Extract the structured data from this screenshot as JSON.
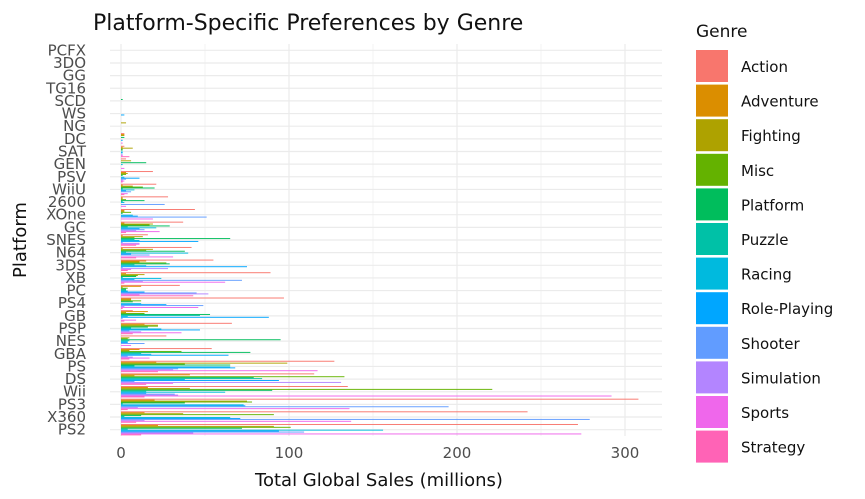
{
  "chart_data": {
    "type": "bar",
    "orientation": "horizontal",
    "title": "Platform-Specific Preferences by Genre",
    "xlabel": "Total Global Sales (millions)",
    "ylabel": "Platform",
    "xlim": [
      -3,
      322
    ],
    "xticks": [
      0,
      100,
      200,
      300
    ],
    "grid": true,
    "legend": {
      "title": "Genre",
      "position": "right",
      "items": [
        {
          "name": "Action",
          "color": "#F8766D"
        },
        {
          "name": "Adventure",
          "color": "#DB8E00"
        },
        {
          "name": "Fighting",
          "color": "#AEA200"
        },
        {
          "name": "Misc",
          "color": "#64B200"
        },
        {
          "name": "Platform",
          "color": "#00BD5C"
        },
        {
          "name": "Puzzle",
          "color": "#00C1A7"
        },
        {
          "name": "Racing",
          "color": "#00BADE"
        },
        {
          "name": "Role-Playing",
          "color": "#00A6FF"
        },
        {
          "name": "Shooter",
          "color": "#619CFF"
        },
        {
          "name": "Simulation",
          "color": "#B385FF"
        },
        {
          "name": "Sports",
          "color": "#EF67EB"
        },
        {
          "name": "Strategy",
          "color": "#FF63B6"
        }
      ]
    },
    "categories": [
      "PS2",
      "X360",
      "PS3",
      "Wii",
      "DS",
      "PS",
      "GBA",
      "NES",
      "PSP",
      "GB",
      "PS4",
      "PC",
      "XB",
      "3DS",
      "N64",
      "SNES",
      "GC",
      "XOne",
      "2600",
      "WiiU",
      "PSV",
      "GEN",
      "SAT",
      "DC",
      "NG",
      "WS",
      "SCD",
      "TG16",
      "GG",
      "3DO",
      "PCFX"
    ],
    "series": [
      {
        "name": "Action",
        "values": [
          272,
          242,
          308,
          135,
          115,
          127,
          54,
          27,
          66,
          7,
          97,
          35,
          89,
          55,
          42,
          16,
          37,
          44,
          28,
          21,
          19,
          3,
          2,
          2,
          0,
          0,
          0,
          0,
          0,
          0,
          0
        ]
      },
      {
        "name": "Adventure",
        "values": [
          22,
          14,
          20,
          16,
          41,
          21,
          11,
          0,
          14,
          16,
          6,
          12,
          3,
          15,
          1,
          1,
          2,
          2,
          1,
          1,
          3,
          0,
          1,
          2,
          0,
          0,
          0,
          0,
          0,
          0,
          0
        ]
      },
      {
        "name": "Fighting",
        "values": [
          91,
          37,
          75,
          41,
          8,
          99,
          5,
          5,
          22,
          3,
          6,
          1,
          14,
          11,
          19,
          13,
          19,
          2,
          1,
          7,
          4,
          6,
          7,
          2,
          3,
          0,
          0,
          0,
          0,
          0,
          0
        ]
      },
      {
        "name": "Misc",
        "values": [
          101,
          91,
          78,
          221,
          133,
          38,
          36,
          4,
          22,
          14,
          12,
          4,
          10,
          27,
          15,
          8,
          17,
          6,
          3,
          13,
          3,
          0,
          1,
          0,
          0,
          0,
          0,
          0,
          0,
          0,
          0
        ]
      },
      {
        "name": "Platform",
        "values": [
          72,
          12,
          38,
          90,
          79,
          65,
          77,
          95,
          16,
          53,
          7,
          3,
          9,
          29,
          38,
          65,
          29,
          1,
          14,
          20,
          1,
          15,
          1,
          2,
          0,
          0,
          1,
          0,
          0,
          0,
          0
        ]
      },
      {
        "name": "Puzzle",
        "values": [
          4,
          2,
          1,
          15,
          84,
          8,
          12,
          5,
          6,
          47,
          0,
          3,
          1,
          8,
          3,
          8,
          4,
          0,
          1,
          1,
          0,
          0,
          0,
          0,
          0,
          0,
          0,
          0,
          0,
          0,
          0
        ]
      },
      {
        "name": "Racing",
        "values": [
          156,
          65,
          73,
          62,
          38,
          65,
          18,
          4,
          24,
          4,
          12,
          4,
          24,
          15,
          40,
          11,
          21,
          7,
          2,
          8,
          2,
          1,
          1,
          0,
          0,
          0,
          0,
          0,
          0,
          0,
          0
        ]
      },
      {
        "name": "Role-Playing",
        "values": [
          94,
          71,
          74,
          15,
          94,
          68,
          64,
          4,
          47,
          88,
          27,
          14,
          8,
          75,
          6,
          46,
          11,
          10,
          0,
          3,
          11,
          0,
          1,
          1,
          0,
          2,
          0,
          0,
          0,
          0,
          0
        ]
      },
      {
        "name": "Shooter",
        "values": [
          109,
          279,
          195,
          32,
          8,
          34,
          4,
          14,
          5,
          1,
          49,
          45,
          72,
          1,
          17,
          1,
          14,
          51,
          26,
          6,
          3,
          0,
          0,
          0,
          0,
          0,
          0,
          0,
          0,
          0,
          0
        ]
      },
      {
        "name": "Simulation",
        "values": [
          43,
          14,
          10,
          34,
          131,
          31,
          7,
          0,
          12,
          0,
          2,
          52,
          13,
          28,
          0,
          11,
          9,
          0,
          0,
          0,
          1,
          0,
          1,
          0,
          0,
          0,
          0,
          0,
          0,
          0,
          0
        ]
      },
      {
        "name": "Sports",
        "values": [
          274,
          137,
          136,
          292,
          31,
          117,
          17,
          6,
          36,
          9,
          46,
          11,
          62,
          6,
          31,
          11,
          23,
          19,
          3,
          4,
          2,
          2,
          1,
          1,
          0,
          0,
          0,
          0,
          0,
          0,
          0
        ]
      },
      {
        "name": "Strategy",
        "values": [
          12,
          9,
          4,
          14,
          15,
          22,
          5,
          0,
          7,
          2,
          1,
          43,
          2,
          4,
          9,
          9,
          3,
          0,
          0,
          2,
          1,
          0,
          5,
          0,
          0,
          0,
          0,
          0,
          0,
          0,
          0
        ]
      }
    ]
  }
}
